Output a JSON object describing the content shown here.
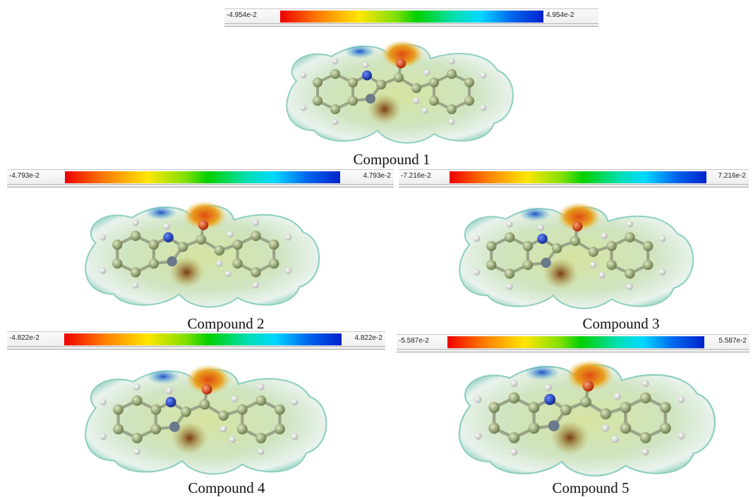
{
  "panels": [
    {
      "caption": "Compound 1",
      "min_label": "-4.954e-2",
      "max_label": "4.954e-2"
    },
    {
      "caption": "Compound 2",
      "min_label": "-4.793e-2",
      "max_label": "4.793e-2"
    },
    {
      "caption": "Compound 3",
      "min_label": "-7.216e-2",
      "max_label": "7.216e-2"
    },
    {
      "caption": "Compound 4",
      "min_label": "-4.822e-2",
      "max_label": "4.822e-2"
    },
    {
      "caption": "Compound 5",
      "min_label": "-5.587e-2",
      "max_label": "5.587e-2"
    }
  ],
  "colors": {
    "negative": "#ee0000",
    "neutral": "#00d000",
    "positive": "#0022cc",
    "surface": "#cde8d8",
    "carbon": "#8a9a70",
    "hydrogen": "#e8e8e8",
    "nitrogen": "#1a3db8",
    "oxygen": "#d03010"
  }
}
